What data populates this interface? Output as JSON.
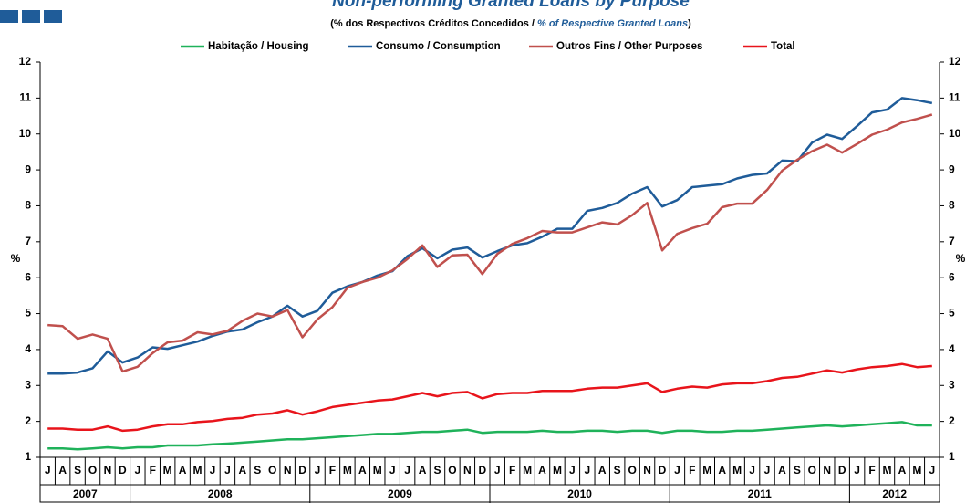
{
  "chart_data": {
    "type": "line",
    "title": "Non-performing Granted Loans by Purpose",
    "subtitle": [
      "(% dos Respectivos  Créditos Concedidos / ",
      "% of Respective Granted Loans",
      ")"
    ],
    "categories": [
      "J",
      "A",
      "S",
      "O",
      "N",
      "D",
      "J",
      "F",
      "M",
      "A",
      "M",
      "J",
      "J",
      "A",
      "S",
      "O",
      "N",
      "D",
      "J",
      "F",
      "M",
      "A",
      "M",
      "J",
      "J",
      "A",
      "S",
      "O",
      "N",
      "D",
      "J",
      "F",
      "M",
      "A",
      "M",
      "J",
      "J",
      "A",
      "S",
      "O",
      "N",
      "D",
      "J",
      "F",
      "M",
      "A",
      "M",
      "J",
      "J",
      "A",
      "S",
      "O",
      "N",
      "D",
      "J",
      "F",
      "M",
      "A",
      "M",
      "J"
    ],
    "years": [
      "2007",
      "2008",
      "2009",
      "2010",
      "2011",
      "2012"
    ],
    "ylabel": "%",
    "y2label": "%",
    "ylim": [
      1,
      12
    ],
    "yticks": [
      1,
      2,
      3,
      4,
      5,
      6,
      7,
      8,
      9,
      10,
      11,
      12
    ],
    "y2lim": [
      1,
      12
    ],
    "y2ticks": [
      1,
      2,
      3,
      4,
      5,
      6,
      7,
      8,
      9,
      10,
      11,
      12
    ],
    "legend": "top",
    "series": [
      {
        "name": "Habitação / Housing",
        "color": "#1fb25a",
        "values": [
          1.25,
          1.25,
          1.22,
          1.25,
          1.28,
          1.25,
          1.28,
          1.28,
          1.33,
          1.33,
          1.33,
          1.36,
          1.38,
          1.41,
          1.44,
          1.47,
          1.5,
          1.5,
          1.53,
          1.56,
          1.59,
          1.62,
          1.65,
          1.65,
          1.68,
          1.71,
          1.71,
          1.74,
          1.77,
          1.68,
          1.71,
          1.71,
          1.71,
          1.74,
          1.71,
          1.71,
          1.74,
          1.74,
          1.71,
          1.74,
          1.74,
          1.68,
          1.74,
          1.74,
          1.71,
          1.71,
          1.74,
          1.74,
          1.77,
          1.8,
          1.83,
          1.86,
          1.89,
          1.86,
          1.89,
          1.92,
          1.95,
          1.98,
          1.89,
          1.89
        ]
      },
      {
        "name": "Consumo / Consumption",
        "color": "#1f5c99",
        "values": [
          3.33,
          3.33,
          3.36,
          3.48,
          3.95,
          3.64,
          3.78,
          4.06,
          4.02,
          4.12,
          4.22,
          4.38,
          4.5,
          4.56,
          4.76,
          4.92,
          5.22,
          4.92,
          5.08,
          5.58,
          5.76,
          5.88,
          6.06,
          6.18,
          6.6,
          6.82,
          6.54,
          6.78,
          6.84,
          6.56,
          6.74,
          6.9,
          6.96,
          7.14,
          7.36,
          7.36,
          7.86,
          7.94,
          8.08,
          8.34,
          8.52,
          7.98,
          8.16,
          8.52,
          8.56,
          8.6,
          8.76,
          8.86,
          8.9,
          9.26,
          9.24,
          9.76,
          9.98,
          9.86,
          10.22,
          10.6,
          10.68,
          11.0,
          10.94,
          10.86
        ]
      },
      {
        "name": "Outros Fins / Other Purposes",
        "color": "#c0504d",
        "values": [
          4.68,
          4.65,
          4.3,
          4.42,
          4.3,
          3.39,
          3.52,
          3.9,
          4.2,
          4.25,
          4.48,
          4.42,
          4.52,
          4.8,
          5.0,
          4.92,
          5.1,
          4.34,
          4.84,
          5.18,
          5.72,
          5.88,
          6.0,
          6.2,
          6.52,
          6.9,
          6.3,
          6.62,
          6.64,
          6.1,
          6.66,
          6.94,
          7.1,
          7.3,
          7.26,
          7.26,
          7.4,
          7.54,
          7.48,
          7.74,
          8.08,
          6.76,
          7.22,
          7.38,
          7.5,
          7.96,
          8.06,
          8.06,
          8.44,
          8.98,
          9.28,
          9.52,
          9.7,
          9.48,
          9.72,
          9.98,
          10.12,
          10.32,
          10.42,
          10.54
        ]
      },
      {
        "name": "Total",
        "color": "#e8141b",
        "values": [
          1.8,
          1.8,
          1.77,
          1.77,
          1.86,
          1.74,
          1.77,
          1.86,
          1.92,
          1.92,
          1.98,
          2.01,
          2.07,
          2.1,
          2.19,
          2.22,
          2.31,
          2.19,
          2.28,
          2.4,
          2.46,
          2.52,
          2.58,
          2.61,
          2.7,
          2.79,
          2.7,
          2.79,
          2.82,
          2.64,
          2.76,
          2.79,
          2.79,
          2.85,
          2.85,
          2.85,
          2.91,
          2.94,
          2.94,
          3.0,
          3.06,
          2.82,
          2.91,
          2.97,
          2.94,
          3.03,
          3.06,
          3.06,
          3.12,
          3.21,
          3.24,
          3.33,
          3.42,
          3.36,
          3.45,
          3.51,
          3.54,
          3.6,
          3.51,
          3.54
        ]
      }
    ]
  }
}
